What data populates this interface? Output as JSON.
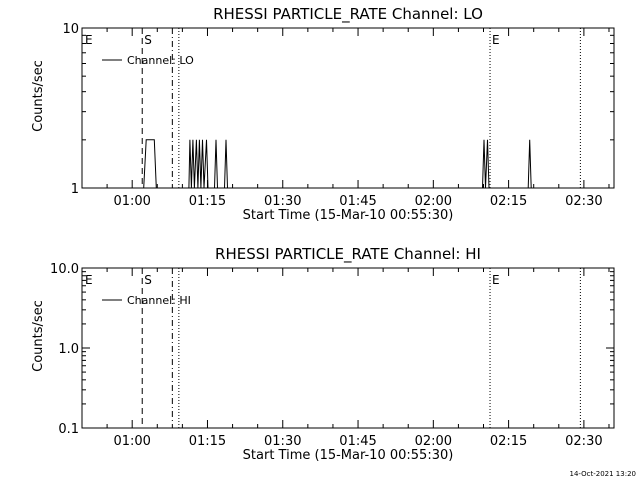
{
  "chart_data": [
    {
      "type": "line",
      "title": "RHESSI PARTICLE_RATE Channel: LO",
      "xlabel": "Start Time (15-Mar-10 00:55:30)",
      "ylabel": "Counts/sec",
      "yscale": "log",
      "ylim": [
        1,
        10
      ],
      "xlim_minutes": [
        -5.5,
        100.5
      ],
      "xticks_minutes": [
        4.5,
        19.5,
        34.5,
        49.5,
        64.5,
        79.5,
        94.5
      ],
      "xtick_labels": [
        "01:00",
        "01:15",
        "01:30",
        "01:45",
        "02:00",
        "02:15",
        "02:30"
      ],
      "ytick_labels": [
        "1",
        "10"
      ],
      "yticks": [
        1,
        10
      ],
      "legend": "Channel: LO",
      "markers": [
        {
          "label": "E",
          "minute": -5.3,
          "style": "none"
        },
        {
          "label": "S",
          "minute": 6.5,
          "style": "dashed"
        },
        {
          "label": "",
          "minute": 12.5,
          "style": "dashdot"
        },
        {
          "label": "",
          "minute": 13.8,
          "style": "dotted"
        },
        {
          "label": "E",
          "minute": 75.8,
          "style": "dotted"
        },
        {
          "label": "",
          "minute": 93.8,
          "style": "dotted"
        }
      ],
      "series": [
        {
          "name": "Channel: LO",
          "points": [
            [
              6.8,
              1
            ],
            [
              7.3,
              2
            ],
            [
              8.9,
              2
            ],
            [
              9.3,
              1
            ],
            [
              15.8,
              1
            ],
            [
              16.0,
              2
            ],
            [
              16.3,
              1
            ],
            [
              16.6,
              2
            ],
            [
              16.9,
              1
            ],
            [
              17.3,
              2
            ],
            [
              17.6,
              1
            ],
            [
              17.9,
              2
            ],
            [
              18.2,
              1
            ],
            [
              18.5,
              2
            ],
            [
              18.8,
              1
            ],
            [
              19.3,
              2
            ],
            [
              19.6,
              1
            ],
            [
              20.9,
              1
            ],
            [
              21.2,
              2
            ],
            [
              21.5,
              1
            ],
            [
              22.9,
              1
            ],
            [
              23.2,
              2
            ],
            [
              23.5,
              1
            ],
            [
              74.3,
              1
            ],
            [
              74.6,
              2
            ],
            [
              74.9,
              1
            ],
            [
              75.3,
              2
            ],
            [
              75.6,
              1
            ],
            [
              83.4,
              1
            ],
            [
              83.7,
              2
            ],
            [
              84.0,
              1
            ]
          ]
        }
      ]
    },
    {
      "type": "line",
      "title": "RHESSI PARTICLE_RATE Channel: HI",
      "xlabel": "Start Time (15-Mar-10 00:55:30)",
      "ylabel": "Counts/sec",
      "yscale": "log",
      "ylim": [
        0.1,
        10
      ],
      "xlim_minutes": [
        -5.5,
        100.5
      ],
      "xticks_minutes": [
        4.5,
        19.5,
        34.5,
        49.5,
        64.5,
        79.5,
        94.5
      ],
      "xtick_labels": [
        "01:00",
        "01:15",
        "01:30",
        "01:45",
        "02:00",
        "02:15",
        "02:30"
      ],
      "ytick_labels": [
        "0.1",
        "1.0",
        "10.0"
      ],
      "yticks": [
        0.1,
        1,
        10
      ],
      "legend": "Channel: HI",
      "markers": [
        {
          "label": "E",
          "minute": -5.3,
          "style": "none"
        },
        {
          "label": "S",
          "minute": 6.5,
          "style": "dashed"
        },
        {
          "label": "",
          "minute": 12.5,
          "style": "dashdot"
        },
        {
          "label": "",
          "minute": 13.8,
          "style": "dotted"
        },
        {
          "label": "E",
          "minute": 75.8,
          "style": "dotted"
        },
        {
          "label": "",
          "minute": 93.8,
          "style": "dotted"
        }
      ],
      "series": [
        {
          "name": "Channel: HI",
          "points": []
        }
      ]
    }
  ],
  "footer": {
    "timestamp": "14-Oct-2021 13:20"
  }
}
